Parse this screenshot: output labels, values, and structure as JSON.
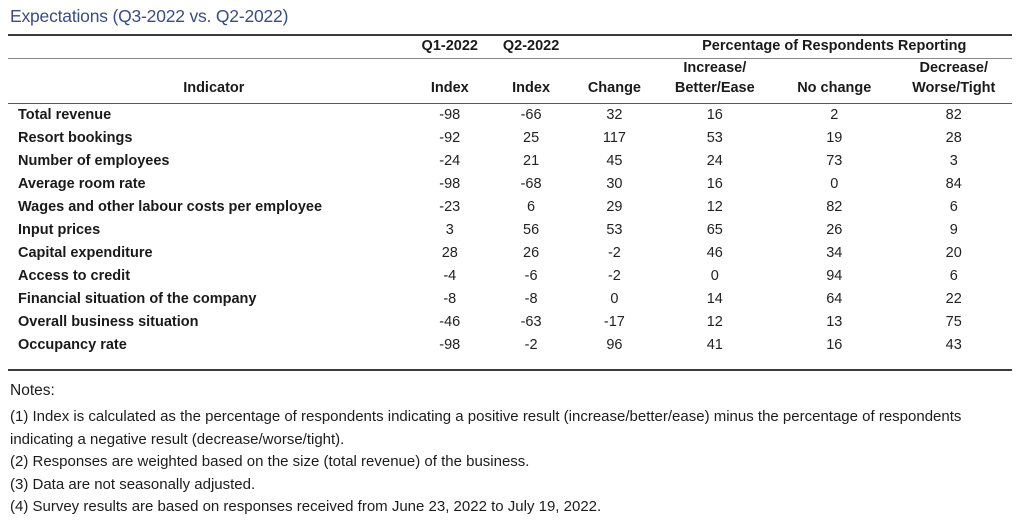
{
  "title": "Expectations (Q3-2022 vs. Q2-2022)",
  "colors": {
    "title_text": "#3a4d85",
    "rule_dark": "#3b3b3b",
    "rule_light": "#8a8a8a",
    "body_text": "#1a1a1a"
  },
  "table": {
    "span_headers": {
      "q1": "Q1-2022",
      "q2": "Q2-2022",
      "pct": "Percentage of Respondents Reporting"
    },
    "col_headers": {
      "indicator": "Indicator",
      "q1_index": "Index",
      "q2_index": "Index",
      "change": "Change",
      "increase_line1": "Increase/",
      "increase_line2": "Better/Ease",
      "no_change": "No change",
      "decrease_line1": "Decrease/",
      "decrease_line2": "Worse/Tight"
    },
    "rows": [
      {
        "indicator": "Total revenue",
        "q1_index": -98,
        "q2_index": -66,
        "change": 32,
        "increase": 16,
        "no_change": 2,
        "decrease": 82
      },
      {
        "indicator": "Resort bookings",
        "q1_index": -92,
        "q2_index": 25,
        "change": 117,
        "increase": 53,
        "no_change": 19,
        "decrease": 28
      },
      {
        "indicator": "Number of employees",
        "q1_index": -24,
        "q2_index": 21,
        "change": 45,
        "increase": 24,
        "no_change": 73,
        "decrease": 3
      },
      {
        "indicator": "Average room rate",
        "q1_index": -98,
        "q2_index": -68,
        "change": 30,
        "increase": 16,
        "no_change": 0,
        "decrease": 84
      },
      {
        "indicator": "Wages and other labour costs per employee",
        "q1_index": -23,
        "q2_index": 6,
        "change": 29,
        "increase": 12,
        "no_change": 82,
        "decrease": 6
      },
      {
        "indicator": "Input prices",
        "q1_index": 3,
        "q2_index": 56,
        "change": 53,
        "increase": 65,
        "no_change": 26,
        "decrease": 9
      },
      {
        "indicator": "Capital expenditure",
        "q1_index": 28,
        "q2_index": 26,
        "change": -2,
        "increase": 46,
        "no_change": 34,
        "decrease": 20
      },
      {
        "indicator": "Access to credit",
        "q1_index": -4,
        "q2_index": -6,
        "change": -2,
        "increase": 0,
        "no_change": 94,
        "decrease": 6
      },
      {
        "indicator": "Financial situation of the company",
        "q1_index": -8,
        "q2_index": -8,
        "change": 0,
        "increase": 14,
        "no_change": 64,
        "decrease": 22
      },
      {
        "indicator": "Overall business situation",
        "q1_index": -46,
        "q2_index": -63,
        "change": -17,
        "increase": 12,
        "no_change": 13,
        "decrease": 75
      },
      {
        "indicator": "Occupancy rate",
        "q1_index": -98,
        "q2_index": -2,
        "change": 96,
        "increase": 41,
        "no_change": 16,
        "decrease": 43
      }
    ]
  },
  "notes": {
    "heading": "Notes:",
    "items": [
      "(1) Index is calculated as the percentage of respondents indicating a positive result (increase/better/ease) minus the percentage of respondents indicating a negative result (decrease/worse/tight).",
      "(2) Responses are weighted based on the size (total revenue) of the business.",
      "(3) Data are not seasonally adjusted.",
      "(4) Survey results are based on responses received from June 23, 2022 to July 19, 2022."
    ]
  }
}
